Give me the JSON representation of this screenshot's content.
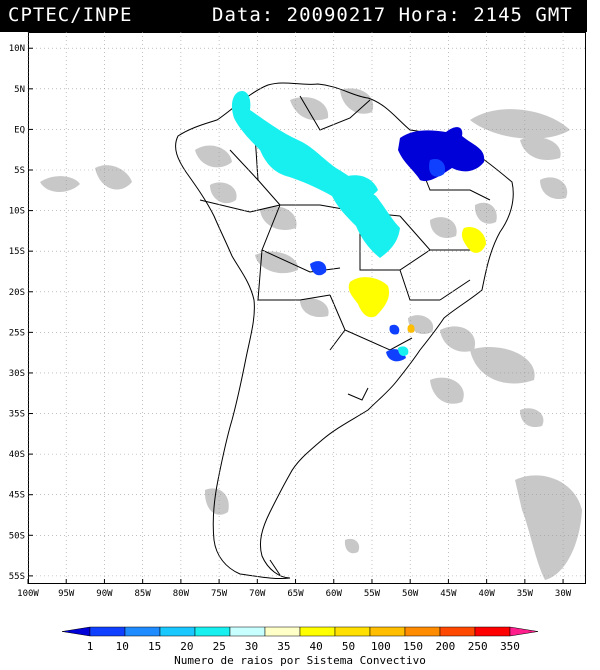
{
  "header": {
    "left": "CPTEC/INPE",
    "right": "Data: 20090217 Hora: 2145 GMT"
  },
  "map": {
    "lat_labels": [
      "10N",
      "5N",
      "EQ",
      "5S",
      "10S",
      "15S",
      "20S",
      "25S",
      "30S",
      "35S",
      "40S",
      "45S",
      "50S",
      "55S"
    ],
    "lon_labels": [
      "100W",
      "95W",
      "90W",
      "85W",
      "80W",
      "75W",
      "70W",
      "65W",
      "60W",
      "55W",
      "50W",
      "45W",
      "40W",
      "35W",
      "30W"
    ],
    "lat_values": [
      10,
      5,
      0,
      -5,
      -10,
      -15,
      -20,
      -25,
      -30,
      -35,
      -40,
      -45,
      -50,
      -55
    ],
    "lon_values": [
      -100,
      -95,
      -90,
      -85,
      -80,
      -75,
      -70,
      -65,
      -60,
      -55,
      -50,
      -45,
      -40,
      -35,
      -30
    ],
    "extent": {
      "lon_min": -100,
      "lon_max": -27,
      "lat_min": -56,
      "lat_max": 12
    },
    "colors": {
      "land_outline": "#000000",
      "cloud": "#c8c8c8",
      "grid": "#9a9a9a"
    }
  },
  "legend": {
    "labels": [
      "1",
      "10",
      "15",
      "20",
      "25",
      "30",
      "35",
      "40",
      "50",
      "100",
      "150",
      "200",
      "250",
      "350"
    ],
    "colors": [
      "#0000d8",
      "#1040ff",
      "#1e8cff",
      "#18c8ff",
      "#18f0f0",
      "#c8ffff",
      "#ffffc8",
      "#ffff00",
      "#ffe000",
      "#ffbe00",
      "#ff8c00",
      "#ff4800",
      "#ff0000",
      "#ff1e8c"
    ],
    "caption": "Numero de raios por Sistema Convectivo"
  },
  "systems": [
    {
      "name": "amazon-north-cyan",
      "color": "#18f0f0"
    },
    {
      "name": "central-brazil-cyan",
      "color": "#18f0f0"
    },
    {
      "name": "northeast-blue",
      "color": "#0000d8"
    },
    {
      "name": "bahia-yellow",
      "color": "#ffff00"
    },
    {
      "name": "mato-grosso-sul-yellow",
      "color": "#ffff00"
    },
    {
      "name": "bolivia-blue",
      "color": "#1040ff"
    },
    {
      "name": "parana-blue",
      "color": "#1040ff"
    },
    {
      "name": "sao-paulo-orange",
      "color": "#ffbe00"
    }
  ]
}
